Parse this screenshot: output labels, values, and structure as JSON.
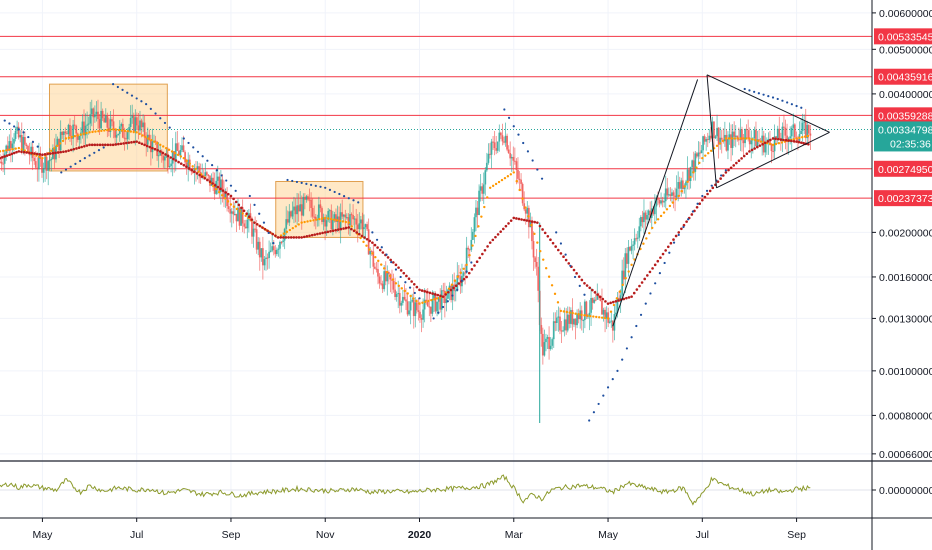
{
  "chart_data": {
    "type": "candlestick",
    "price_axis": {
      "scale": "log",
      "range": [
        0.00064,
        0.0064
      ],
      "ticks": [
        "0.00600000",
        "0.00500000",
        "0.00400000",
        "0.00200000",
        "0.00160000",
        "0.00130000",
        "0.00100000",
        "0.00080000",
        "0.00066000"
      ],
      "tick_values": [
        0.006,
        0.005,
        0.004,
        0.002,
        0.0016,
        0.0013,
        0.001,
        0.0008,
        0.00066
      ]
    },
    "oscillator_axis": {
      "ticks": [
        "0.00000000"
      ],
      "tick_values": [
        0
      ]
    },
    "time_axis": {
      "ticks": [
        "May",
        "Jul",
        "Sep",
        "Nov",
        "2020",
        "Mar",
        "May",
        "Jul",
        "Sep"
      ],
      "tick_positions": [
        0,
        2,
        4,
        6,
        8,
        10,
        12,
        14,
        16
      ],
      "start_month_index": -0.9,
      "end_month_index": 17.6
    },
    "horizontal_levels": [
      {
        "label": "0.00533545",
        "value": 0.00533545,
        "color": "#f23645"
      },
      {
        "label": "0.00435916",
        "value": 0.00435916,
        "color": "#f23645"
      },
      {
        "label": "0.00359288",
        "value": 0.00359288,
        "color": "#f23645"
      },
      {
        "label": "0.00274950",
        "value": 0.0027495,
        "color": "#f23645"
      },
      {
        "label": "0.00237373",
        "value": 0.00237373,
        "color": "#f23645"
      }
    ],
    "last_price": {
      "label": "0.00334798",
      "value": 0.00334798,
      "color": "#26a69a",
      "countdown": "02:35:36"
    },
    "highlight_boxes": [
      {
        "t0": 0.15,
        "t1": 2.65,
        "p_high": 0.0042,
        "p_low": 0.00272
      },
      {
        "t0": 4.95,
        "t1": 6.8,
        "p_high": 0.00258,
        "p_low": 0.00195
      }
    ],
    "price_path": [
      [
        -0.9,
        0.00285
      ],
      [
        -0.6,
        0.0033
      ],
      [
        -0.4,
        0.0031
      ],
      [
        -0.1,
        0.0028
      ],
      [
        0.2,
        0.0029
      ],
      [
        0.5,
        0.0034
      ],
      [
        0.8,
        0.0033
      ],
      [
        1.1,
        0.0036
      ],
      [
        1.4,
        0.0034
      ],
      [
        1.7,
        0.0033
      ],
      [
        2.0,
        0.0035
      ],
      [
        2.3,
        0.0031
      ],
      [
        2.6,
        0.0029
      ],
      [
        2.9,
        0.003
      ],
      [
        3.2,
        0.0028
      ],
      [
        3.5,
        0.0026
      ],
      [
        3.8,
        0.0025
      ],
      [
        4.1,
        0.0022
      ],
      [
        4.4,
        0.0021
      ],
      [
        4.7,
        0.0017
      ],
      [
        5.0,
        0.0019
      ],
      [
        5.3,
        0.0022
      ],
      [
        5.6,
        0.0023
      ],
      [
        5.9,
        0.0022
      ],
      [
        6.2,
        0.0021
      ],
      [
        6.5,
        0.00215
      ],
      [
        6.8,
        0.0021
      ],
      [
        7.1,
        0.0016
      ],
      [
        7.4,
        0.00155
      ],
      [
        7.7,
        0.0014
      ],
      [
        8.0,
        0.00135
      ],
      [
        8.3,
        0.0014
      ],
      [
        8.6,
        0.00145
      ],
      [
        8.9,
        0.0016
      ],
      [
        9.2,
        0.0022
      ],
      [
        9.5,
        0.003
      ],
      [
        9.8,
        0.0033
      ],
      [
        10.1,
        0.0026
      ],
      [
        10.3,
        0.0022
      ],
      [
        10.5,
        0.0016
      ],
      [
        10.6,
        0.0011
      ],
      [
        10.9,
        0.00125
      ],
      [
        11.2,
        0.0013
      ],
      [
        11.5,
        0.00135
      ],
      [
        11.8,
        0.0014
      ],
      [
        12.1,
        0.00125
      ],
      [
        12.4,
        0.0018
      ],
      [
        12.7,
        0.0021
      ],
      [
        13.0,
        0.0023
      ],
      [
        13.3,
        0.0024
      ],
      [
        13.6,
        0.0026
      ],
      [
        13.9,
        0.0029
      ],
      [
        14.2,
        0.0034
      ],
      [
        14.5,
        0.0031
      ],
      [
        14.8,
        0.0033
      ],
      [
        15.1,
        0.0032
      ],
      [
        15.4,
        0.0031
      ],
      [
        15.7,
        0.00325
      ],
      [
        16.0,
        0.0033
      ],
      [
        16.3,
        0.00334798
      ]
    ],
    "ema_fast": [
      [
        -0.9,
        0.003
      ],
      [
        -0.5,
        0.00305
      ],
      [
        0.0,
        0.0029
      ],
      [
        0.5,
        0.0032
      ],
      [
        1.0,
        0.0033
      ],
      [
        1.5,
        0.00335
      ],
      [
        2.0,
        0.0033
      ],
      [
        2.5,
        0.0031
      ],
      [
        3.0,
        0.0029
      ],
      [
        3.5,
        0.0026
      ],
      [
        4.0,
        0.0023
      ],
      [
        4.5,
        0.0021
      ],
      [
        5.0,
        0.00195
      ],
      [
        5.5,
        0.0021
      ],
      [
        6.0,
        0.00215
      ],
      [
        6.5,
        0.0021
      ],
      [
        7.0,
        0.0018
      ],
      [
        7.5,
        0.00155
      ],
      [
        8.0,
        0.0014
      ],
      [
        8.5,
        0.00145
      ],
      [
        9.0,
        0.0017
      ],
      [
        9.5,
        0.0025
      ],
      [
        10.0,
        0.0027
      ],
      [
        10.5,
        0.0019
      ],
      [
        11.0,
        0.00135
      ],
      [
        11.5,
        0.00132
      ],
      [
        12.0,
        0.0013
      ],
      [
        12.5,
        0.0017
      ],
      [
        13.0,
        0.0021
      ],
      [
        13.5,
        0.0024
      ],
      [
        14.0,
        0.0029
      ],
      [
        14.5,
        0.0032
      ],
      [
        15.0,
        0.0032
      ],
      [
        15.5,
        0.0031
      ],
      [
        16.0,
        0.0032
      ],
      [
        16.3,
        0.00325
      ]
    ],
    "ema_slow": [
      [
        -0.9,
        0.0029
      ],
      [
        -0.5,
        0.003
      ],
      [
        0.0,
        0.00295
      ],
      [
        0.5,
        0.003
      ],
      [
        1.0,
        0.0031
      ],
      [
        1.5,
        0.0031
      ],
      [
        2.0,
        0.00315
      ],
      [
        2.5,
        0.003
      ],
      [
        3.0,
        0.0028
      ],
      [
        3.5,
        0.0026
      ],
      [
        4.0,
        0.0024
      ],
      [
        4.5,
        0.0021
      ],
      [
        5.0,
        0.00195
      ],
      [
        5.5,
        0.00195
      ],
      [
        6.0,
        0.002
      ],
      [
        6.5,
        0.00205
      ],
      [
        7.0,
        0.0019
      ],
      [
        7.5,
        0.0017
      ],
      [
        8.0,
        0.0015
      ],
      [
        8.5,
        0.00145
      ],
      [
        9.0,
        0.0016
      ],
      [
        9.5,
        0.0019
      ],
      [
        10.0,
        0.00215
      ],
      [
        10.5,
        0.0021
      ],
      [
        11.0,
        0.0018
      ],
      [
        11.5,
        0.00155
      ],
      [
        12.0,
        0.0014
      ],
      [
        12.5,
        0.00145
      ],
      [
        13.0,
        0.0017
      ],
      [
        13.5,
        0.002
      ],
      [
        14.0,
        0.00235
      ],
      [
        14.5,
        0.0027
      ],
      [
        15.0,
        0.003
      ],
      [
        15.5,
        0.0032
      ],
      [
        16.0,
        0.00315
      ],
      [
        16.3,
        0.0031
      ]
    ],
    "sar_segments": [
      [
        [
          -0.8,
          0.0035
        ],
        [
          -0.4,
          0.0033
        ],
        [
          0.0,
          0.003
        ]
      ],
      [
        [
          0.4,
          0.0027
        ],
        [
          0.9,
          0.0029
        ],
        [
          1.4,
          0.0031
        ]
      ],
      [
        [
          1.5,
          0.0042
        ],
        [
          2.2,
          0.0038
        ],
        [
          2.8,
          0.0033
        ]
      ],
      [
        [
          3.0,
          0.0032
        ],
        [
          3.6,
          0.0028
        ],
        [
          4.2,
          0.0024
        ]
      ],
      [
        [
          4.4,
          0.0024
        ],
        [
          4.7,
          0.0021
        ],
        [
          5.0,
          0.0018
        ]
      ],
      [
        [
          5.2,
          0.0026
        ],
        [
          6.0,
          0.0025
        ],
        [
          6.8,
          0.0023
        ]
      ],
      [
        [
          7.0,
          0.002
        ],
        [
          7.6,
          0.0016
        ],
        [
          8.1,
          0.0014
        ]
      ],
      [
        [
          8.3,
          0.0013
        ],
        [
          8.8,
          0.0015
        ],
        [
          9.2,
          0.0018
        ]
      ],
      [
        [
          9.8,
          0.0037
        ],
        [
          10.3,
          0.003
        ],
        [
          10.7,
          0.0025
        ]
      ],
      [
        [
          10.9,
          0.002
        ],
        [
          11.3,
          0.0016
        ],
        [
          11.6,
          0.0014
        ]
      ],
      [
        [
          11.6,
          0.00078
        ],
        [
          12.2,
          0.001
        ],
        [
          12.8,
          0.0014
        ],
        [
          13.4,
          0.0019
        ],
        [
          14.0,
          0.0024
        ],
        [
          14.6,
          0.0028
        ]
      ],
      [
        [
          14.9,
          0.0041
        ],
        [
          15.6,
          0.0039
        ],
        [
          16.2,
          0.0037
        ]
      ]
    ],
    "triangle": {
      "upper": [
        [
          14.1,
          0.0044
        ],
        [
          16.7,
          0.0033
        ]
      ],
      "lower": [
        [
          14.3,
          0.0025
        ],
        [
          16.7,
          0.0033
        ]
      ],
      "left": [
        [
          14.1,
          0.0044
        ],
        [
          14.3,
          0.0025
        ]
      ]
    },
    "trend_line": [
      [
        12.1,
        0.00125
      ],
      [
        13.9,
        0.0043
      ]
    ],
    "oscillator": [
      [
        -0.9,
        0.15
      ],
      [
        -0.7,
        0.3
      ],
      [
        -0.5,
        0.1
      ],
      [
        -0.3,
        0.25
      ],
      [
        0.0,
        0.1
      ],
      [
        0.3,
        0.0
      ],
      [
        0.5,
        0.45
      ],
      [
        0.8,
        -0.1
      ],
      [
        1.0,
        0.2
      ],
      [
        1.3,
        -0.05
      ],
      [
        1.6,
        0.1
      ],
      [
        2.0,
        0.0
      ],
      [
        2.3,
        0.05
      ],
      [
        2.6,
        -0.15
      ],
      [
        3.0,
        0.0
      ],
      [
        3.4,
        -0.2
      ],
      [
        3.8,
        -0.1
      ],
      [
        4.2,
        -0.25
      ],
      [
        4.6,
        -0.1
      ],
      [
        5.0,
        -0.05
      ],
      [
        5.4,
        0.05
      ],
      [
        5.8,
        0.0
      ],
      [
        6.2,
        -0.05
      ],
      [
        6.6,
        0.05
      ],
      [
        7.0,
        -0.1
      ],
      [
        7.4,
        -0.05
      ],
      [
        7.8,
        -0.1
      ],
      [
        8.2,
        0.0
      ],
      [
        8.6,
        0.05
      ],
      [
        9.0,
        0.1
      ],
      [
        9.4,
        0.2
      ],
      [
        9.8,
        0.6
      ],
      [
        10.0,
        0.1
      ],
      [
        10.2,
        -0.5
      ],
      [
        10.4,
        -0.2
      ],
      [
        10.6,
        -0.4
      ],
      [
        10.8,
        0.0
      ],
      [
        11.0,
        0.1
      ],
      [
        11.4,
        0.2
      ],
      [
        11.8,
        0.1
      ],
      [
        12.1,
        -0.1
      ],
      [
        12.4,
        0.3
      ],
      [
        12.8,
        0.1
      ],
      [
        13.2,
        -0.1
      ],
      [
        13.6,
        0.1
      ],
      [
        13.8,
        -0.6
      ],
      [
        14.0,
        -0.2
      ],
      [
        14.2,
        0.5
      ],
      [
        14.5,
        0.2
      ],
      [
        14.8,
        0.0
      ],
      [
        15.1,
        -0.2
      ],
      [
        15.4,
        0.0
      ],
      [
        15.7,
        -0.1
      ],
      [
        16.0,
        0.05
      ],
      [
        16.3,
        0.1
      ]
    ]
  }
}
